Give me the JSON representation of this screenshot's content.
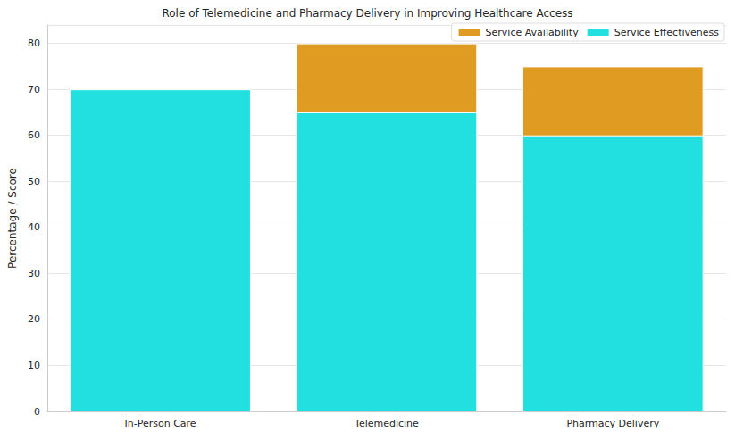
{
  "chart_data": {
    "type": "bar",
    "title": "Role of Telemedicine and Pharmacy Delivery in Improving Healthcare Access",
    "ylabel": "Percentage / Score",
    "categories": [
      "In-Person Care",
      "Telemedicine",
      "Pharmacy Delivery"
    ],
    "series": [
      {
        "name": "Service Availability",
        "color": "#e09c22",
        "values": [
          null,
          80,
          75
        ]
      },
      {
        "name": "Service Effectiveness",
        "color": "#22e0e0",
        "values": [
          70,
          65,
          60
        ]
      }
    ],
    "stacked": false,
    "ylim": [
      0,
      84
    ],
    "yticks": [
      0,
      10,
      20,
      30,
      40,
      50,
      60,
      70,
      80
    ],
    "grid": true,
    "legend": "upper right"
  }
}
